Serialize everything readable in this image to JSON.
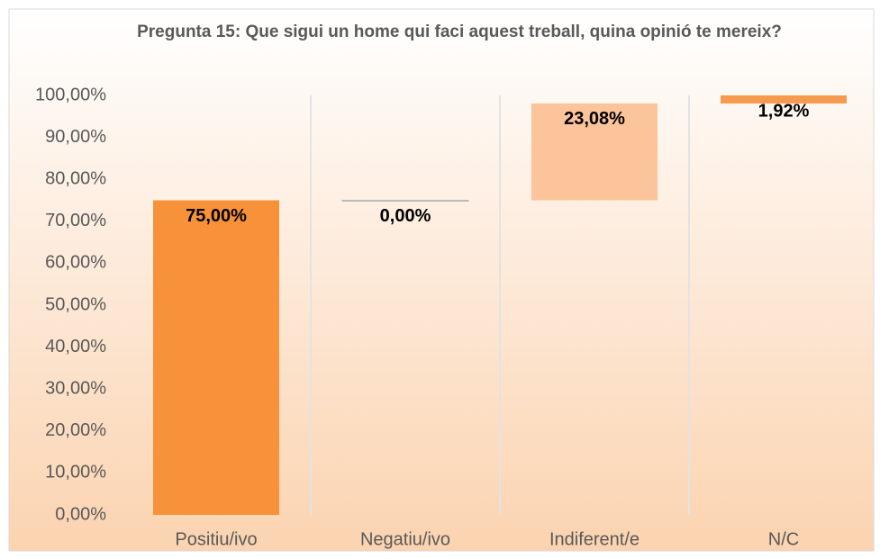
{
  "chart_data": {
    "type": "waterfall",
    "title": "Pregunta 15: Que sigui un home qui faci aquest treball, quina opinió te mereix?",
    "categories": [
      "Positiu/ivo",
      "Negatiu/ivo",
      "Indiferent/e",
      "N/C"
    ],
    "values": [
      75,
      0,
      23.08,
      1.92
    ],
    "value_labels": [
      "75,00%",
      "0,00%",
      "23,08%",
      "1,92%"
    ],
    "colors": [
      "#f7923a",
      "#f9b27a",
      "#fbc49a",
      "#f59a4e"
    ],
    "ylim": [
      0,
      100
    ],
    "yticks": [
      {
        "value": 0,
        "label": "0,00%"
      },
      {
        "value": 10,
        "label": "10,00%"
      },
      {
        "value": 20,
        "label": "20,00%"
      },
      {
        "value": 30,
        "label": "30,00%"
      },
      {
        "value": 40,
        "label": "40,00%"
      },
      {
        "value": 50,
        "label": "50,00%"
      },
      {
        "value": 60,
        "label": "60,00%"
      },
      {
        "value": 70,
        "label": "70,00%"
      },
      {
        "value": 80,
        "label": "80,00%"
      },
      {
        "value": 90,
        "label": "90,00%"
      },
      {
        "value": 100,
        "label": "100,00%"
      }
    ],
    "grid": false
  }
}
